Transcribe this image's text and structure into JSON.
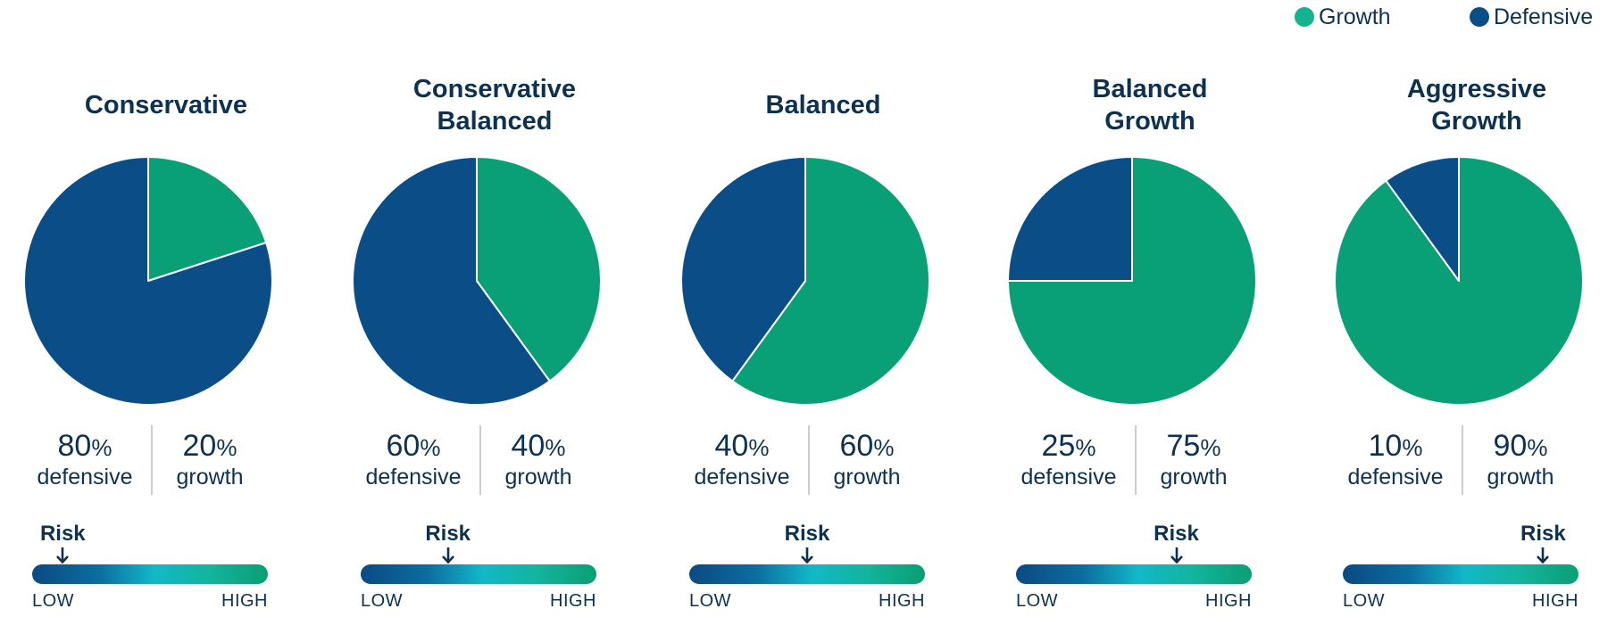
{
  "legend": [
    {
      "label": "Growth",
      "color": "#0aa077"
    },
    {
      "label": "Defensive",
      "color": "#0b4e87"
    }
  ],
  "colors": {
    "growth": "#0aa077",
    "defensive": "#0b4e87"
  },
  "chart_data": [
    {
      "type": "pie",
      "title": "Conservative",
      "series": [
        {
          "name": "Growth",
          "value": 20
        },
        {
          "name": "Defensive",
          "value": 80
        }
      ],
      "defensive_pct": "80",
      "growth_pct": "20",
      "defensive_label": "defensive",
      "growth_label": "growth",
      "risk_label": "Risk",
      "risk_level": 0.13,
      "risk_low": "LOW",
      "risk_high": "HIGH"
    },
    {
      "type": "pie",
      "title": "Conservative Balanced",
      "series": [
        {
          "name": "Growth",
          "value": 40
        },
        {
          "name": "Defensive",
          "value": 60
        }
      ],
      "defensive_pct": "60",
      "growth_pct": "40",
      "defensive_label": "defensive",
      "growth_label": "growth",
      "risk_label": "Risk",
      "risk_level": 0.37,
      "risk_low": "LOW",
      "risk_high": "HIGH"
    },
    {
      "type": "pie",
      "title": "Balanced",
      "series": [
        {
          "name": "Growth",
          "value": 60
        },
        {
          "name": "Defensive",
          "value": 40
        }
      ],
      "defensive_pct": "40",
      "growth_pct": "60",
      "defensive_label": "defensive",
      "growth_label": "growth",
      "risk_label": "Risk",
      "risk_level": 0.5,
      "risk_low": "LOW",
      "risk_high": "HIGH"
    },
    {
      "type": "pie",
      "title": "Balanced Growth",
      "series": [
        {
          "name": "Growth",
          "value": 75
        },
        {
          "name": "Defensive",
          "value": 25
        }
      ],
      "defensive_pct": "25",
      "growth_pct": "75",
      "defensive_label": "defensive",
      "growth_label": "growth",
      "risk_label": "Risk",
      "risk_level": 0.68,
      "risk_low": "LOW",
      "risk_high": "HIGH"
    },
    {
      "type": "pie",
      "title": "Aggressive Growth",
      "series": [
        {
          "name": "Growth",
          "value": 90
        },
        {
          "name": "Defensive",
          "value": 10
        }
      ],
      "defensive_pct": "10",
      "growth_pct": "90",
      "defensive_label": "defensive",
      "growth_label": "growth",
      "risk_label": "Risk",
      "risk_level": 0.85,
      "risk_low": "LOW",
      "risk_high": "HIGH"
    }
  ]
}
